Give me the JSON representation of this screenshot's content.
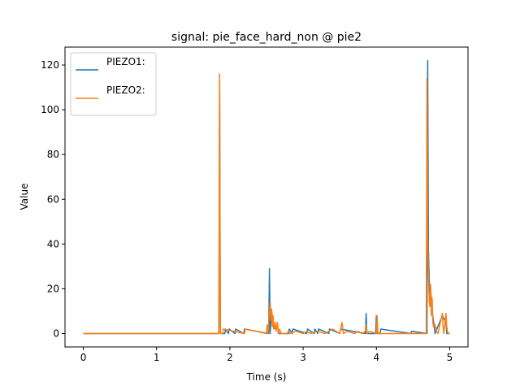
{
  "chart_data": {
    "type": "line",
    "title": "signal: pie_face_hard_non @ pie2",
    "xlabel": "Time (s)",
    "ylabel": "Value",
    "xlim": [
      -0.25,
      5.25
    ],
    "ylim": [
      -6,
      128
    ],
    "xticks": [
      0,
      1,
      2,
      3,
      4,
      5
    ],
    "xtick_labels": [
      "0",
      "1",
      "2",
      "3",
      "4",
      "5"
    ],
    "yticks": [
      0,
      20,
      40,
      60,
      80,
      100,
      120
    ],
    "ytick_labels": [
      "0",
      "20",
      "40",
      "60",
      "80",
      "100",
      "120"
    ],
    "grid": false,
    "legend_position": "upper-left",
    "series": [
      {
        "name": "PIEZO1:",
        "color": "#1f77b4",
        "x": [
          0,
          1.85,
          1.86,
          1.87,
          1.93,
          1.94,
          1.98,
          1.99,
          2.07,
          2.08,
          2.19,
          2.2,
          2.53,
          2.54,
          2.55,
          2.57,
          2.6,
          2.65,
          2.67,
          2.8,
          2.81,
          2.85,
          2.86,
          3.05,
          3.06,
          3.15,
          3.16,
          3.2,
          3.21,
          3.35,
          3.36,
          3.5,
          3.51,
          3.85,
          3.86,
          3.87,
          3.99,
          4.0,
          4.01,
          4.05,
          4.06,
          4.47,
          4.48,
          4.69,
          4.7,
          4.71,
          4.72,
          4.73,
          4.74,
          4.76,
          4.79,
          4.8,
          4.9,
          4.95,
          4.96,
          5.0
        ],
        "y": [
          0,
          0,
          115,
          0,
          0,
          2,
          0,
          2,
          0,
          2,
          0,
          2,
          0,
          29,
          0,
          10,
          2,
          3,
          0,
          0,
          2,
          0,
          2,
          0,
          2,
          0,
          2,
          0,
          2,
          0,
          2,
          0,
          2,
          0,
          9,
          0,
          0,
          8,
          0,
          0,
          2,
          0,
          1,
          0,
          122,
          38,
          25,
          15,
          20,
          10,
          3,
          0,
          8,
          5,
          0,
          0
        ]
      },
      {
        "name": "PIEZO2:",
        "color": "#ff7f0e",
        "x": [
          0,
          1.85,
          1.86,
          1.87,
          1.9,
          1.91,
          2.2,
          2.21,
          2.5,
          2.51,
          2.52,
          2.54,
          2.55,
          2.56,
          2.57,
          2.58,
          2.59,
          2.6,
          2.62,
          2.63,
          2.65,
          2.66,
          2.68,
          2.7,
          2.78,
          2.8,
          2.82,
          2.9,
          3.0,
          3.05,
          3.1,
          3.2,
          3.3,
          3.4,
          3.5,
          3.53,
          3.55,
          3.6,
          3.7,
          3.75,
          3.8,
          3.85,
          3.86,
          3.87,
          3.9,
          4.0,
          4.01,
          4.02,
          4.68,
          4.69,
          4.7,
          4.71,
          4.72,
          4.73,
          4.74,
          4.75,
          4.76,
          4.77,
          4.78,
          4.8,
          4.82,
          4.84,
          4.9,
          4.91,
          4.92,
          4.95,
          4.96,
          4.97,
          4.98,
          5.0
        ],
        "y": [
          0,
          0,
          116,
          0,
          0,
          2,
          0,
          2,
          0,
          4,
          0,
          9,
          14,
          6,
          11,
          3,
          8,
          2,
          5,
          1,
          5,
          0,
          2,
          0,
          0,
          1,
          0,
          1,
          0,
          1,
          0,
          1,
          0,
          2,
          0,
          5,
          0,
          1,
          0,
          1,
          0,
          1,
          4,
          0,
          1,
          0,
          8,
          0,
          0,
          114,
          42,
          27,
          15,
          12,
          22,
          8,
          16,
          5,
          3,
          4,
          1,
          0,
          9,
          3,
          0,
          9,
          3,
          1,
          0,
          0
        ]
      }
    ]
  }
}
